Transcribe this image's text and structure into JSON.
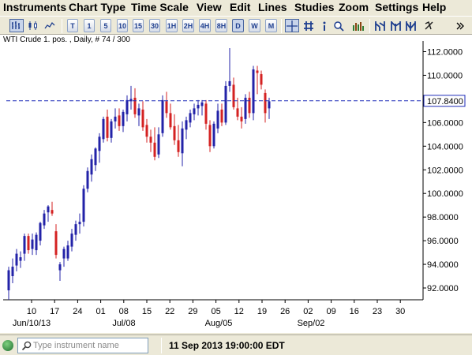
{
  "menu": [
    "Instruments",
    "Chart Type",
    "Time Scale",
    "View",
    "Edit",
    "Lines",
    "Studies",
    "Zoom",
    "Settings",
    "Help"
  ],
  "toolbar": {
    "chart_style_icons": [
      "bar-chart-icon",
      "candlestick-chart-icon",
      "line-chart-icon"
    ],
    "timeframes": [
      "T",
      "1",
      "5",
      "10",
      "15",
      "30",
      "1H",
      "2H",
      "4H",
      "8H",
      "D",
      "W",
      "M"
    ],
    "active_timeframe": "D",
    "tool_icons": [
      "crosshair-icon",
      "grid-icon",
      "info-icon",
      "zoom-icon",
      "volume-bars-icon",
      "chart-style-a-icon",
      "chart-style-b-icon",
      "chart-style-c-icon",
      "chart-style-d-icon",
      "remove-icon",
      "more-icon"
    ]
  },
  "chart": {
    "caption": "WTI Crude 1. pos. , Daily, # 74 / 300",
    "current_price_label": "107.8400",
    "colors": {
      "up": "#2323A8",
      "down": "#D42222",
      "price_line": "#1E2BB8",
      "axis": "#000000"
    }
  },
  "chart_data": {
    "type": "candlestick",
    "title": "WTI Crude 1. pos. , Daily, # 74 / 300",
    "y_ticks": [
      "112.0000",
      "110.0000",
      "108.0000",
      "106.0000",
      "104.0000",
      "102.0000",
      "100.0000",
      "98.0000",
      "96.0000",
      "94.0000",
      "92.0000"
    ],
    "ylim": [
      91,
      112.5
    ],
    "current_price": 107.84,
    "x_tick_labels": [
      "10",
      "17",
      "24",
      "01",
      "08",
      "15",
      "22",
      "29",
      "05",
      "12",
      "19",
      "26",
      "02",
      "09",
      "16",
      "23",
      "30"
    ],
    "x_period_labels": [
      "Jun/10/13",
      "Jul/08",
      "Aug/05",
      "Sep/02"
    ],
    "candles": [
      {
        "o": 91.8,
        "h": 93.8,
        "l": 91.0,
        "c": 93.5
      },
      {
        "o": 93.0,
        "h": 94.5,
        "l": 92.4,
        "c": 93.8
      },
      {
        "o": 93.9,
        "h": 95.3,
        "l": 93.4,
        "c": 94.9
      },
      {
        "o": 94.3,
        "h": 95.1,
        "l": 93.7,
        "c": 94.6
      },
      {
        "o": 94.9,
        "h": 96.6,
        "l": 94.3,
        "c": 96.4
      },
      {
        "o": 96.4,
        "h": 96.6,
        "l": 94.9,
        "c": 95.2
      },
      {
        "o": 95.3,
        "h": 96.6,
        "l": 94.8,
        "c": 96.1
      },
      {
        "o": 95.2,
        "h": 96.7,
        "l": 94.8,
        "c": 96.5
      },
      {
        "o": 96.0,
        "h": 97.6,
        "l": 95.6,
        "c": 97.5
      },
      {
        "o": 97.3,
        "h": 98.6,
        "l": 97.0,
        "c": 98.3
      },
      {
        "o": 98.4,
        "h": 99.0,
        "l": 97.6,
        "c": 98.9
      },
      {
        "o": 98.6,
        "h": 99.3,
        "l": 98.1,
        "c": 98.3
      },
      {
        "o": 96.8,
        "h": 97.4,
        "l": 94.5,
        "c": 94.8
      },
      {
        "o": 93.5,
        "h": 94.2,
        "l": 92.6,
        "c": 94.0
      },
      {
        "o": 94.5,
        "h": 95.5,
        "l": 93.8,
        "c": 95.3
      },
      {
        "o": 94.5,
        "h": 96.0,
        "l": 94.3,
        "c": 95.6
      },
      {
        "o": 95.5,
        "h": 97.0,
        "l": 95.1,
        "c": 96.6
      },
      {
        "o": 96.5,
        "h": 97.7,
        "l": 96.0,
        "c": 97.4
      },
      {
        "o": 97.4,
        "h": 98.3,
        "l": 96.6,
        "c": 97.6
      },
      {
        "o": 97.6,
        "h": 100.7,
        "l": 97.2,
        "c": 100.4
      },
      {
        "o": 100.4,
        "h": 102.2,
        "l": 100.1,
        "c": 101.9
      },
      {
        "o": 101.6,
        "h": 103.3,
        "l": 101.0,
        "c": 102.9
      },
      {
        "o": 102.4,
        "h": 103.9,
        "l": 101.9,
        "c": 103.8
      },
      {
        "o": 103.6,
        "h": 105.1,
        "l": 102.6,
        "c": 104.8
      },
      {
        "o": 104.6,
        "h": 106.5,
        "l": 104.3,
        "c": 106.3
      },
      {
        "o": 106.5,
        "h": 107.1,
        "l": 104.4,
        "c": 104.7
      },
      {
        "o": 104.7,
        "h": 106.3,
        "l": 104.3,
        "c": 106.1
      },
      {
        "o": 106.1,
        "h": 107.2,
        "l": 105.5,
        "c": 106.5
      },
      {
        "o": 106.6,
        "h": 107.2,
        "l": 105.3,
        "c": 105.7
      },
      {
        "o": 105.7,
        "h": 107.1,
        "l": 105.2,
        "c": 106.9
      },
      {
        "o": 106.7,
        "h": 108.3,
        "l": 106.1,
        "c": 107.9
      },
      {
        "o": 107.8,
        "h": 109.1,
        "l": 107.1,
        "c": 108.0
      },
      {
        "o": 108.1,
        "h": 108.9,
        "l": 106.4,
        "c": 106.7
      },
      {
        "o": 106.6,
        "h": 107.6,
        "l": 105.7,
        "c": 107.2
      },
      {
        "o": 107.1,
        "h": 107.8,
        "l": 105.3,
        "c": 105.6
      },
      {
        "o": 105.8,
        "h": 106.3,
        "l": 104.3,
        "c": 104.8
      },
      {
        "o": 104.8,
        "h": 105.4,
        "l": 103.5,
        "c": 104.3
      },
      {
        "o": 104.3,
        "h": 105.6,
        "l": 102.8,
        "c": 103.1
      },
      {
        "o": 103.3,
        "h": 105.6,
        "l": 103.0,
        "c": 105.0
      },
      {
        "o": 105.1,
        "h": 108.3,
        "l": 104.8,
        "c": 107.9
      },
      {
        "o": 107.8,
        "h": 108.6,
        "l": 106.4,
        "c": 106.8
      },
      {
        "o": 106.8,
        "h": 107.6,
        "l": 105.4,
        "c": 105.6
      },
      {
        "o": 105.7,
        "h": 106.7,
        "l": 104.1,
        "c": 104.5
      },
      {
        "o": 104.5,
        "h": 105.8,
        "l": 103.1,
        "c": 103.5
      },
      {
        "o": 103.4,
        "h": 106.1,
        "l": 102.3,
        "c": 105.5
      },
      {
        "o": 105.4,
        "h": 106.5,
        "l": 104.6,
        "c": 106.2
      },
      {
        "o": 106.0,
        "h": 107.1,
        "l": 105.6,
        "c": 106.8
      },
      {
        "o": 106.7,
        "h": 107.6,
        "l": 106.2,
        "c": 107.2
      },
      {
        "o": 107.2,
        "h": 107.9,
        "l": 106.6,
        "c": 107.5
      },
      {
        "o": 107.4,
        "h": 107.9,
        "l": 106.6,
        "c": 107.7
      },
      {
        "o": 107.6,
        "h": 107.9,
        "l": 105.4,
        "c": 105.9
      },
      {
        "o": 105.8,
        "h": 106.2,
        "l": 103.5,
        "c": 104.0
      },
      {
        "o": 104.0,
        "h": 106.1,
        "l": 103.8,
        "c": 105.9
      },
      {
        "o": 105.5,
        "h": 107.6,
        "l": 105.1,
        "c": 107.0
      },
      {
        "o": 107.1,
        "h": 107.6,
        "l": 105.7,
        "c": 106.0
      },
      {
        "o": 106.0,
        "h": 109.5,
        "l": 105.8,
        "c": 109.1
      },
      {
        "o": 109.1,
        "h": 112.3,
        "l": 108.6,
        "c": 109.5
      },
      {
        "o": 109.2,
        "h": 109.8,
        "l": 107.1,
        "c": 107.3
      },
      {
        "o": 107.2,
        "h": 108.1,
        "l": 106.2,
        "c": 106.5
      },
      {
        "o": 106.5,
        "h": 107.3,
        "l": 105.5,
        "c": 106.1
      },
      {
        "o": 106.3,
        "h": 108.4,
        "l": 105.9,
        "c": 108.1
      },
      {
        "o": 108.1,
        "h": 108.6,
        "l": 106.4,
        "c": 106.8
      },
      {
        "o": 106.8,
        "h": 110.8,
        "l": 106.2,
        "c": 110.5
      },
      {
        "o": 110.4,
        "h": 110.8,
        "l": 108.4,
        "c": 110.2
      },
      {
        "o": 110.1,
        "h": 110.4,
        "l": 108.8,
        "c": 109.2
      },
      {
        "o": 108.5,
        "h": 108.8,
        "l": 106.0,
        "c": 106.8
      },
      {
        "o": 107.2,
        "h": 108.1,
        "l": 106.3,
        "c": 107.8
      }
    ]
  },
  "statusbar": {
    "search_placeholder": "Type instrument name",
    "datetime": "11 Sep 2013 19:00:00 EDT"
  }
}
